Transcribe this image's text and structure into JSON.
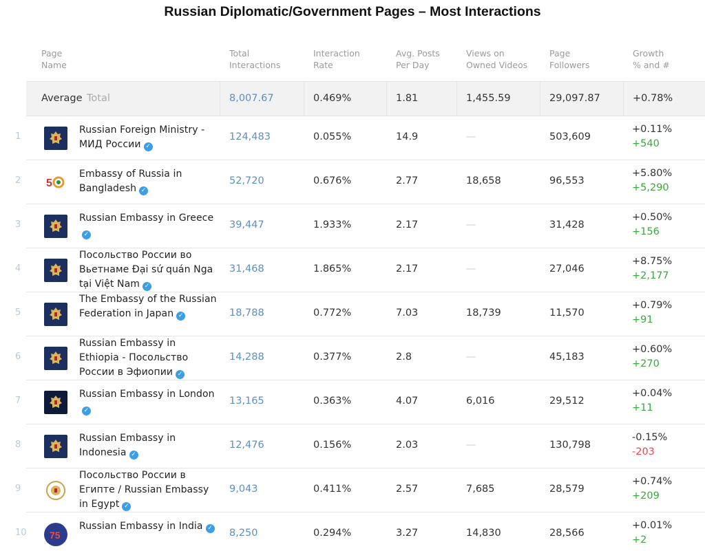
{
  "title": "Russian Diplomatic/Government Pages – Most Interactions",
  "headers": {
    "page_name": [
      "Page",
      "Name"
    ],
    "total_interactions": [
      "Total",
      "Interactions"
    ],
    "interaction_rate": [
      "Interaction",
      "Rate"
    ],
    "avg_posts": [
      "Avg. Posts",
      "Per Day"
    ],
    "views": [
      "Views on",
      "Owned Videos"
    ],
    "followers": [
      "Page",
      "Followers"
    ],
    "growth": [
      "Growth",
      "% and #"
    ]
  },
  "average": {
    "label": "Average",
    "sublabel": "Total",
    "total_interactions": "8,007.67",
    "interaction_rate": "0.469%",
    "avg_posts": "1.81",
    "views": "1,455.59",
    "followers": "29,097.87",
    "growth": "+0.78%"
  },
  "rows": [
    {
      "rank": "1",
      "name": "Russian Foreign Ministry - МИД России",
      "total": "124,483",
      "rate": "0.055%",
      "posts": "14.9",
      "views": "—",
      "followers": "503,609",
      "growth_pct": "+0.11%",
      "growth_abs": "+540",
      "logo": "coat-of-arms-icon"
    },
    {
      "rank": "2",
      "name": "Embassy of Russia in Bangladesh",
      "total": "52,720",
      "rate": "0.676%",
      "posts": "2.77",
      "views": "18,658",
      "followers": "96,553",
      "growth_pct": "+5.80%",
      "growth_abs": "+5,290",
      "logo": "anniversary-50-logo-icon"
    },
    {
      "rank": "3",
      "name": "Russian Embassy in Greece",
      "total": "39,447",
      "rate": "1.933%",
      "posts": "2.17",
      "views": "—",
      "followers": "31,428",
      "growth_pct": "+0.50%",
      "growth_abs": "+156",
      "logo": "coat-of-arms-icon"
    },
    {
      "rank": "4",
      "name": "Посольство России во Вьетнаме Đại sứ quán Nga tại Việt Nam",
      "total": "31,468",
      "rate": "1.865%",
      "posts": "2.17",
      "views": "—",
      "followers": "27,046",
      "growth_pct": "+8.75%",
      "growth_abs": "+2,177",
      "logo": "coat-of-arms-icon"
    },
    {
      "rank": "5",
      "name": "The Embassy of the Russian Federation in Japan",
      "total": "18,788",
      "rate": "0.772%",
      "posts": "7.03",
      "views": "18,739",
      "followers": "11,570",
      "growth_pct": "+0.79%",
      "growth_abs": "+91",
      "logo": "coat-of-arms-icon"
    },
    {
      "rank": "6",
      "name": "Russian Embassy in Ethiopia - Посольство России в Эфиопии",
      "total": "14,288",
      "rate": "0.377%",
      "posts": "2.8",
      "views": "—",
      "followers": "45,183",
      "growth_pct": "+0.60%",
      "growth_abs": "+270",
      "logo": "coat-of-arms-icon"
    },
    {
      "rank": "7",
      "name": "Russian Embassy in London",
      "total": "13,165",
      "rate": "0.363%",
      "posts": "4.07",
      "views": "6,016",
      "followers": "29,512",
      "growth_pct": "+0.04%",
      "growth_abs": "+11",
      "logo": "coat-of-arms-icon"
    },
    {
      "rank": "8",
      "name": "Russian Embassy in Indonesia",
      "total": "12,476",
      "rate": "0.156%",
      "posts": "2.03",
      "views": "—",
      "followers": "130,798",
      "growth_pct": "-0.15%",
      "growth_abs": "-203",
      "logo": "coat-of-arms-icon"
    },
    {
      "rank": "9",
      "name": "Посольство России в Египте / Russian Embassy in Egypt",
      "total": "9,043",
      "rate": "0.411%",
      "posts": "2.57",
      "views": "7,685",
      "followers": "28,579",
      "growth_pct": "+0.74%",
      "growth_abs": "+209",
      "logo": "emblem-seal-icon"
    },
    {
      "rank": "10",
      "name": "Russian Embassy in India",
      "total": "8,250",
      "rate": "0.294%",
      "posts": "3.27",
      "views": "14,830",
      "followers": "28,566",
      "growth_pct": "+0.01%",
      "growth_abs": "+2",
      "logo": "anniversary-75-logo-icon"
    }
  ],
  "colors": {
    "link_blue": "#5b8fc7",
    "positive": "#39a83a",
    "negative": "#e8474e",
    "verified": "#3b9ee6",
    "logo_navy": "#1d2f5e"
  }
}
